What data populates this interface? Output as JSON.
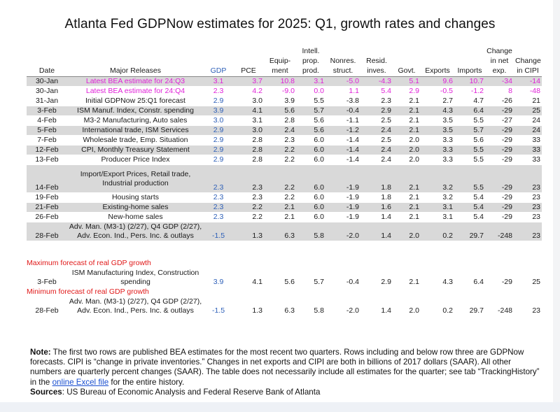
{
  "title": "Atlanta Fed GDPNow estimates for 2025: Q1, growth rates and changes",
  "headers": {
    "date": "Date",
    "releases": "Major Releases",
    "gdp": "GDP",
    "pce": "PCE",
    "equip": [
      "Equip-",
      "ment"
    ],
    "intell": [
      "Intell.",
      "prop.",
      "prod."
    ],
    "nonres": [
      "Nonres.",
      "struct."
    ],
    "resid": [
      "Resid.",
      "inves."
    ],
    "govt": "Govt.",
    "exports": "Exports",
    "imports": "Imports",
    "netexp": [
      "Change",
      "in net",
      "exp."
    ],
    "cipi": [
      "Change",
      "in CIPI"
    ]
  },
  "rows": [
    {
      "date": "30-Jan",
      "release": "Latest BEA estimate for 24:Q3",
      "gdp": "3.1",
      "pce": "3.7",
      "equip": "10.8",
      "intell": "3.1",
      "nonres": "-5.0",
      "resid": "-4.3",
      "govt": "5.1",
      "exports": "9.6",
      "imports": "10.7",
      "netexp": "-34",
      "cipi": "-14",
      "style": "pink",
      "shade": true
    },
    {
      "date": "30-Jan",
      "release": "Latest BEA estimate for 24:Q4",
      "gdp": "2.3",
      "pce": "4.2",
      "equip": "-9.0",
      "intell": "0.0",
      "nonres": "1.1",
      "resid": "5.4",
      "govt": "2.9",
      "exports": "-0.5",
      "imports": "-1.2",
      "netexp": "8",
      "cipi": "-48",
      "style": "pink",
      "shade": false
    },
    {
      "date": "31-Jan",
      "release": "Initial GDPNow 25:Q1 forecast",
      "gdp": "2.9",
      "pce": "3.0",
      "equip": "3.9",
      "intell": "5.5",
      "nonres": "-3.8",
      "resid": "2.3",
      "govt": "2.1",
      "exports": "2.7",
      "imports": "4.7",
      "netexp": "-26",
      "cipi": "21",
      "shade": false
    },
    {
      "date": "3-Feb",
      "release": "ISM Manuf. Index, Constr. spending",
      "gdp": "3.9",
      "pce": "4.1",
      "equip": "5.6",
      "intell": "5.7",
      "nonres": "-0.4",
      "resid": "2.9",
      "govt": "2.1",
      "exports": "4.3",
      "imports": "6.4",
      "netexp": "-29",
      "cipi": "25",
      "shade": true
    },
    {
      "date": "4-Feb",
      "release": "M3-2 Manufacturing, Auto sales",
      "gdp": "3.0",
      "pce": "3.1",
      "equip": "2.8",
      "intell": "5.6",
      "nonres": "-1.1",
      "resid": "2.5",
      "govt": "2.1",
      "exports": "3.5",
      "imports": "5.5",
      "netexp": "-27",
      "cipi": "24",
      "shade": false
    },
    {
      "date": "5-Feb",
      "release": "International trade, ISM Services",
      "gdp": "2.9",
      "pce": "3.0",
      "equip": "2.4",
      "intell": "5.6",
      "nonres": "-1.2",
      "resid": "2.4",
      "govt": "2.1",
      "exports": "3.5",
      "imports": "5.7",
      "netexp": "-29",
      "cipi": "24",
      "shade": true
    },
    {
      "date": "7-Feb",
      "release": "Wholesale trade, Emp. Situation",
      "gdp": "2.9",
      "pce": "2.8",
      "equip": "2.3",
      "intell": "6.0",
      "nonres": "-1.4",
      "resid": "2.5",
      "govt": "2.0",
      "exports": "3.3",
      "imports": "5.6",
      "netexp": "-29",
      "cipi": "33",
      "shade": false
    },
    {
      "date": "12-Feb",
      "release": "CPI, Monthly Treasury Statement",
      "gdp": "2.9",
      "pce": "2.8",
      "equip": "2.2",
      "intell": "6.0",
      "nonres": "-1.4",
      "resid": "2.4",
      "govt": "2.0",
      "exports": "3.3",
      "imports": "5.5",
      "netexp": "-29",
      "cipi": "33",
      "shade": true
    },
    {
      "date": "13-Feb",
      "release": "Producer Price Index",
      "gdp": "2.9",
      "pce": "2.8",
      "equip": "2.2",
      "intell": "6.0",
      "nonres": "-1.4",
      "resid": "2.4",
      "govt": "2.0",
      "exports": "3.3",
      "imports": "5.5",
      "netexp": "-29",
      "cipi": "33",
      "shade": false
    },
    {
      "date": "14-Feb",
      "release": "Import/Export Prices, Retail trade, Industrial production",
      "gdp": "2.3",
      "pce": "2.3",
      "equip": "2.2",
      "intell": "6.0",
      "nonres": "-1.9",
      "resid": "1.8",
      "govt": "2.1",
      "exports": "3.2",
      "imports": "5.5",
      "netexp": "-29",
      "cipi": "23",
      "shade": true,
      "tall": 3
    },
    {
      "date": "19-Feb",
      "release": "Housing starts",
      "gdp": "2.3",
      "pce": "2.3",
      "equip": "2.2",
      "intell": "6.0",
      "nonres": "-1.9",
      "resid": "1.8",
      "govt": "2.1",
      "exports": "3.2",
      "imports": "5.4",
      "netexp": "-29",
      "cipi": "23",
      "shade": false
    },
    {
      "date": "21-Feb",
      "release": "Existing-home sales",
      "gdp": "2.3",
      "pce": "2.2",
      "equip": "2.1",
      "intell": "6.0",
      "nonres": "-1.9",
      "resid": "1.6",
      "govt": "2.1",
      "exports": "3.1",
      "imports": "5.4",
      "netexp": "-29",
      "cipi": "23",
      "shade": true
    },
    {
      "date": "26-Feb",
      "release": "New-home sales",
      "gdp": "2.3",
      "pce": "2.2",
      "equip": "2.1",
      "intell": "6.0",
      "nonres": "-1.9",
      "resid": "1.4",
      "govt": "2.1",
      "exports": "3.1",
      "imports": "5.4",
      "netexp": "-29",
      "cipi": "23",
      "shade": false
    },
    {
      "date": "28-Feb",
      "release": "Adv. Man. (M3-1) (2/27), Q4 GDP (2/27), Adv. Econ. Ind., Pers. Inc. & outlays",
      "gdp": "-1.5",
      "pce": "1.3",
      "equip": "6.3",
      "intell": "5.8",
      "nonres": "-2.0",
      "resid": "1.4",
      "govt": "2.0",
      "exports": "0.2",
      "imports": "29.7",
      "netexp": "-248",
      "cipi": "23",
      "shade": true,
      "tall": 2
    }
  ],
  "max_label": "Maximum forecast of real GDP growth",
  "max_row": {
    "date": "3-Feb",
    "release": "ISM Manufacturing Index, Construction spending",
    "gdp": "3.9",
    "pce": "4.1",
    "equip": "5.6",
    "intell": "5.7",
    "nonres": "-0.4",
    "resid": "2.9",
    "govt": "2.1",
    "exports": "4.3",
    "imports": "6.4",
    "netexp": "-29",
    "cipi": "25",
    "tall": 2
  },
  "min_label": "Minimum forecast of real GDP growth",
  "min_row": {
    "date": "28-Feb",
    "release": "Adv. Man. (M3-1) (2/27), Q4 GDP (2/27), Adv. Econ. Ind., Pers. Inc. & outlays",
    "gdp": "-1.5",
    "pce": "1.3",
    "equip": "6.3",
    "intell": "5.8",
    "nonres": "-2.0",
    "resid": "1.4",
    "govt": "2.0",
    "exports": "0.2",
    "imports": "29.7",
    "netexp": "-248",
    "cipi": "23",
    "tall": 2
  },
  "note": {
    "label": "Note:",
    "text1": " The first two rows are published BEA estimates for the most recent two quarters. Rows including and below row three are GDPNow forecasts. CIPI is “change in private inventories.” Changes in net exports and CIPI are both in billions of 2017 dollars (SAAR). All other numbers are quarterly percent changes (SAAR). The table does not necessarily include all estimates for the quarter; see tab “TrackingHistory” in the ",
    "link": "online Excel file",
    "text2": " for the entire history.",
    "sources_label": "Sources",
    "sources_text": ": US Bureau of Economic Analysis and Federal Reserve Bank of Atlanta"
  },
  "colors": {
    "gdp": "#2d5fb8",
    "bea": "#e020d8",
    "label": "#e01818",
    "shade": "#d9d9d9"
  }
}
